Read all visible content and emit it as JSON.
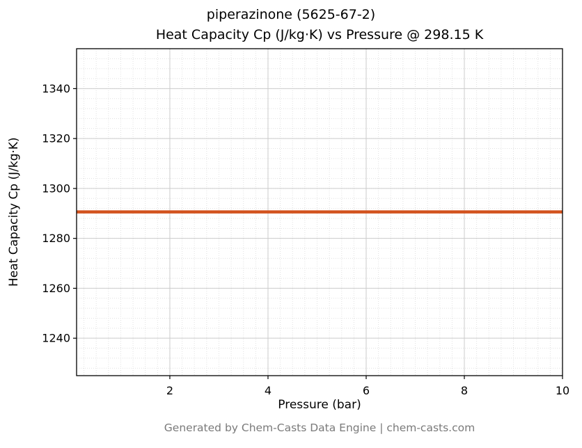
{
  "page": {
    "footer": "Generated by Chem-Casts Data Engine | chem-casts.com"
  },
  "chart_data": {
    "type": "line",
    "title": "piperazinone (5625-67-2)\nHeat Capacity Cp (J/kg·K) vs Pressure @ 298.15 K",
    "title_lines": [
      "piperazinone (5625-67-2)",
      "Heat Capacity Cp (J/kg·K) vs Pressure @ 298.15 K"
    ],
    "compound": "piperazinone",
    "cas_number": "5625-67-2",
    "temperature_K": 298.15,
    "xlabel": "Pressure (bar)",
    "ylabel": "Heat Capacity Cp (J/kg·K)",
    "series": [
      {
        "name": "Heat Capacity Cp",
        "x": [
          0.1,
          1,
          2,
          3,
          4,
          5,
          6,
          7,
          8,
          9,
          10
        ],
        "y": [
          1290.6,
          1290.6,
          1290.6,
          1290.6,
          1290.6,
          1290.6,
          1290.6,
          1290.6,
          1290.6,
          1290.6,
          1290.6
        ]
      }
    ],
    "xlim": [
      0.1,
      10
    ],
    "ylim": [
      1225,
      1356
    ],
    "xticks": [
      2,
      4,
      6,
      8,
      10
    ],
    "yticks": [
      1240,
      1260,
      1280,
      1300,
      1320,
      1340
    ],
    "grid": true,
    "minor_grid": true,
    "legend": "none",
    "line_color": "#d2521e",
    "line_width": 4.5
  }
}
